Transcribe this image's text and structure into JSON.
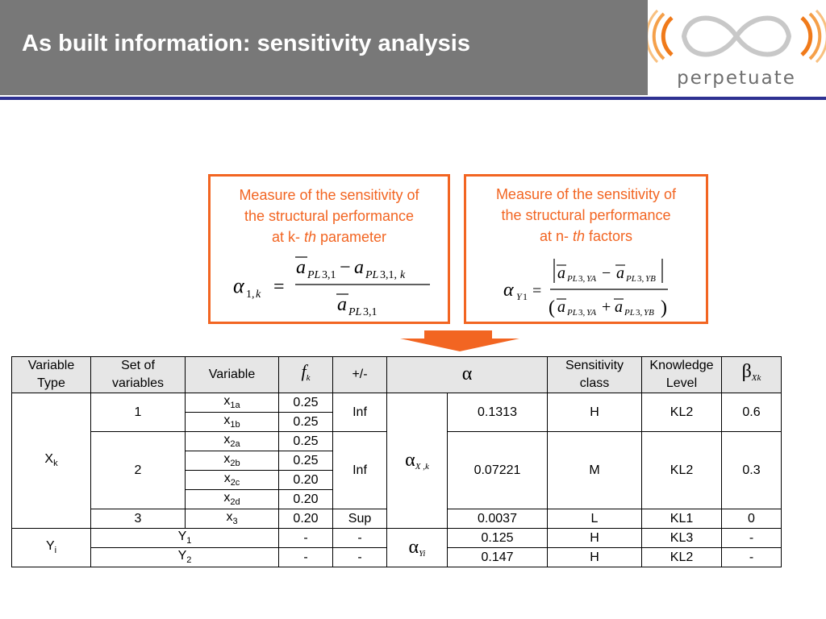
{
  "header": {
    "title": "As built information: sensitivity analysis",
    "logo_text": "perpetuate"
  },
  "colors": {
    "header_bg": "#787878",
    "rule": "#2e3192",
    "accent": "#f26522",
    "logo_orange": "#f07a1a",
    "table_head_bg": "#e6e6e6"
  },
  "box_left": {
    "line1": "Measure of the sensitivity of",
    "line2": "the structural performance",
    "line3_pre": "at k- ",
    "line3_it": "th",
    "line3_post": " parameter",
    "formula": "α1,k = (āPL3,1 − aPL3,1,k) / āPL3,1"
  },
  "box_right": {
    "line1": "Measure of the sensitivity of",
    "line2": "the structural performance",
    "line3_pre": "at n- ",
    "line3_it": "th",
    "line3_post": " factors",
    "formula": "αY1 = |āPL3,YA − āPL3,YB| / (āPL3,YA + āPL3,YB)"
  },
  "table": {
    "headers": {
      "variable_type_1": "Variable",
      "variable_type_2": "Type",
      "set_1": "Set of",
      "set_2": "variables",
      "variable": "Variable",
      "f": "f",
      "f_sub": "k",
      "pm": "+/-",
      "alpha": "α",
      "sens_1": "Sensitivity",
      "sens_2": "class",
      "know_1": "Knowledge",
      "know_2": "Level",
      "beta": "β",
      "beta_sub": "Xk"
    },
    "xk": {
      "label": "X",
      "sub": "k"
    },
    "yi": {
      "label": "Y",
      "sub": "i"
    },
    "alpha_xk": {
      "sym": "α",
      "sub": "X ,k"
    },
    "alpha_yi": {
      "sym": "α",
      "sub": "Yi"
    },
    "sets": [
      {
        "set": "1",
        "pm": "Inf",
        "alpha": "0.1313",
        "sens": "H",
        "know": "KL2",
        "beta": "0.6"
      },
      {
        "set": "2",
        "pm": "Inf",
        "alpha": "0.07221",
        "sens": "M",
        "know": "KL2",
        "beta": "0.3"
      },
      {
        "set": "3",
        "pm": "Sup",
        "alpha": "0.0037",
        "sens": "L",
        "know": "KL1",
        "beta": "0"
      }
    ],
    "vars": [
      {
        "v": "x",
        "s": "1a",
        "f": "0.25"
      },
      {
        "v": "x",
        "s": "1b",
        "f": "0.25"
      },
      {
        "v": "x",
        "s": "2a",
        "f": "0.25"
      },
      {
        "v": "x",
        "s": "2b",
        "f": "0.25"
      },
      {
        "v": "x",
        "s": "2c",
        "f": "0.20"
      },
      {
        "v": "x",
        "s": "2d",
        "f": "0.20"
      },
      {
        "v": "x",
        "s": "3",
        "f": "0.20"
      }
    ],
    "y_rows": [
      {
        "v": "Y",
        "s": "1",
        "f": "-",
        "pm": "-",
        "alpha": "0.125",
        "sens": "H",
        "know": "KL3",
        "beta": "-"
      },
      {
        "v": "Y",
        "s": "2",
        "f": "-",
        "pm": "-",
        "alpha": "0.147",
        "sens": "H",
        "know": "KL2",
        "beta": "-"
      }
    ]
  }
}
